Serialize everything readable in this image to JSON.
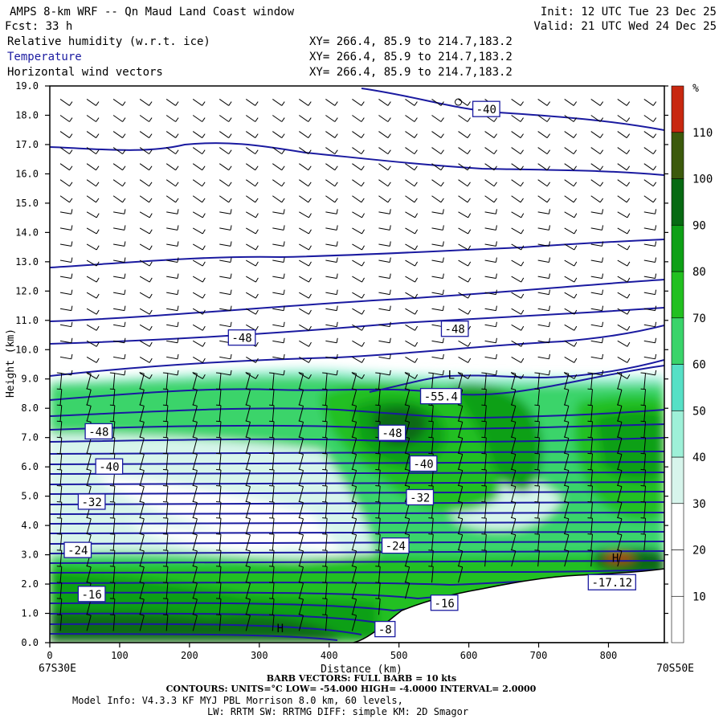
{
  "header": {
    "title": "AMPS 8-km WRF -- Qn Maud Land Coast window",
    "init": "Init: 12 UTC Tue 23 Dec 25",
    "fcst": "Fcst:   33 h",
    "valid": "Valid: 21 UTC Wed 24 Dec 25",
    "fields": [
      {
        "name": "Relative humidity (w.r.t. ice)",
        "xy": "XY= 266.4, 85.9 to 214.7,183.2",
        "color": "#000000"
      },
      {
        "name": "Temperature",
        "xy": "XY= 266.4, 85.9 to 214.7,183.2",
        "color": "#1a1aa0"
      },
      {
        "name": "Horizontal wind vectors",
        "xy": "XY= 266.4, 85.9 to 214.7,183.2",
        "color": "#000000"
      }
    ]
  },
  "chart_data": {
    "type": "heatmap",
    "title": "Relative humidity (w.r.t. ice), Temperature, Horizontal wind vectors",
    "xlabel": "Distance (km)",
    "ylabel": "Height (km)",
    "xlim": [
      0,
      880
    ],
    "ylim": [
      0,
      19
    ],
    "x_ticks": [
      0,
      100,
      200,
      300,
      400,
      500,
      600,
      700,
      800
    ],
    "y_ticks": [
      "0.0",
      "1.0",
      "2.0",
      "3.0",
      "4.0",
      "5.0",
      "6.0",
      "7.0",
      "8.0",
      "9.0",
      "10.0",
      "11.0",
      "12.0",
      "13.0",
      "14.0",
      "15.0",
      "16.0",
      "17.0",
      "18.0",
      "19.0"
    ],
    "left_endpoint": "67S30E",
    "right_endpoint": "70S50E",
    "colorbar": {
      "unit": "%",
      "labels": [
        "10",
        "20",
        "30",
        "40",
        "50",
        "60",
        "70",
        "80",
        "90",
        "100",
        "110"
      ],
      "levels": [
        10,
        20,
        30,
        40,
        50,
        60,
        70,
        80,
        90,
        100,
        110
      ],
      "colors": [
        "#ffffff",
        "#ffffff",
        "#ffffff",
        "#d7f5ec",
        "#9ef0d8",
        "#56e0c6",
        "#3ad46a",
        "#22c020",
        "#0ea016",
        "#076a12",
        "#3c5a0c",
        "#c82810"
      ]
    },
    "terrain": [
      [
        0,
        0
      ],
      [
        100,
        0
      ],
      [
        200,
        0
      ],
      [
        300,
        0
      ],
      [
        400,
        0
      ],
      [
        440,
        0
      ],
      [
        460,
        0.3
      ],
      [
        480,
        0.7
      ],
      [
        520,
        1.2
      ],
      [
        560,
        1.5
      ],
      [
        600,
        1.8
      ],
      [
        640,
        2.0
      ],
      [
        680,
        2.2
      ],
      [
        720,
        2.3
      ],
      [
        760,
        2.3
      ],
      [
        800,
        2.35
      ],
      [
        840,
        2.4
      ],
      [
        880,
        2.5
      ]
    ],
    "temperature_contours": {
      "units": "°C",
      "low": -54.0,
      "high": -4.0,
      "interval": 2.0,
      "labels": [
        {
          "text": "-40",
          "x": 625,
          "y": 18.2
        },
        {
          "text": "-48",
          "x": 275,
          "y": 10.4
        },
        {
          "text": "-48",
          "x": 580,
          "y": 10.7
        },
        {
          "text": "-55.4",
          "x": 560,
          "y": 8.4
        },
        {
          "text": "-48",
          "x": 70,
          "y": 7.2
        },
        {
          "text": "-48",
          "x": 490,
          "y": 7.15
        },
        {
          "text": "-40",
          "x": 85,
          "y": 6.0
        },
        {
          "text": "-40",
          "x": 535,
          "y": 6.1
        },
        {
          "text": "-32",
          "x": 60,
          "y": 4.8
        },
        {
          "text": "-32",
          "x": 530,
          "y": 4.95
        },
        {
          "text": "-24",
          "x": 40,
          "y": 3.15
        },
        {
          "text": "-24",
          "x": 495,
          "y": 3.3
        },
        {
          "text": "-16",
          "x": 60,
          "y": 1.65
        },
        {
          "text": "-8",
          "x": 480,
          "y": 0.45
        },
        {
          "text": "-16",
          "x": 565,
          "y": 1.35
        },
        {
          "text": "-17.12",
          "x": 805,
          "y": 2.05
        }
      ],
      "extrema": [
        {
          "text": "L",
          "x": 575,
          "y": 9.0
        },
        {
          "text": "H",
          "x": 330,
          "y": 0.35
        },
        {
          "text": "H",
          "x": 810,
          "y": 2.75
        }
      ]
    },
    "wind_barbs": "BARB VECTORS:  FULL BARB = 10 kts"
  },
  "footer": {
    "barb": "BARB VECTORS:  FULL BARB = 10 kts",
    "contours": "CONTOURS:  UNITS=°C  LOW= -54.000      HIGH= -4.0000      INTERVAL=   2.0000",
    "model1": "Model Info: V4.3.3   KF     MYJ PBL  Morrison          8.0 km,  60 levels,",
    "model2": "LW: RRTM SW: RRTMG   DIFF: simple KM: 2D Smagor"
  },
  "colors": {
    "contour": "#1a1aa0",
    "label_box": "#1a1aa0",
    "terrain": "#ffffff"
  }
}
